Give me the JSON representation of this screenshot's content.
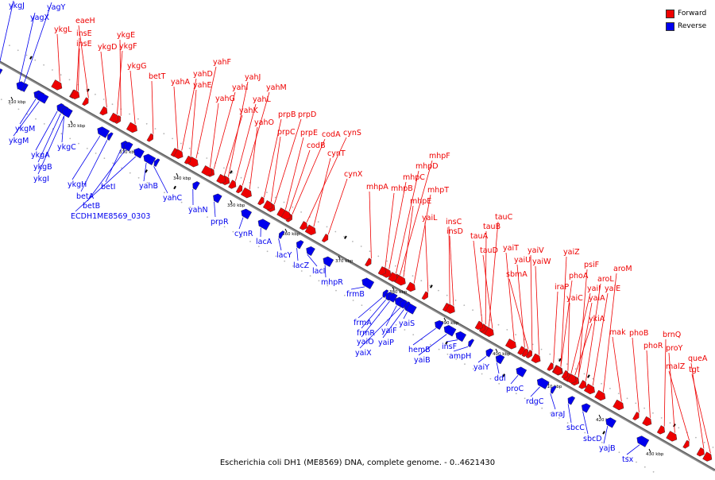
{
  "caption": "Escherichia coli DH1 (ME8569) DNA, complete genome. - 0..4621430",
  "colors": {
    "forward": "#ee0000",
    "reverse": "#0000ee",
    "axis": "#8a8a8a"
  },
  "legend": [
    {
      "label": "Forward",
      "strand": "forward"
    },
    {
      "label": "Reverse",
      "strand": "reverse"
    }
  ],
  "ticks": [
    "310 kbp",
    "320 kbp",
    "330 kbp",
    "340 kbp",
    "350 kbp",
    "360 kbp",
    "370 kbp",
    "380 kbp",
    "390 kbp",
    "400 kbp",
    "410 kbp",
    "420 kbp",
    "430 kbp"
  ],
  "forward_genes": [
    "eaeH",
    "insE",
    "insE",
    "ykgL",
    "ykgE",
    "ykgD",
    "ykgF",
    "ykgG",
    "betT",
    "yahA",
    "yahD",
    "yahF",
    "yahE",
    "yahI",
    "yahJ",
    "yahG",
    "yahM",
    "yahL",
    "yahK",
    "yahO",
    "prpB",
    "prpD",
    "prpC",
    "prpE",
    "codA",
    "cynS",
    "codB",
    "cynT",
    "cynX",
    "mhpF",
    "mhpD",
    "mhpC",
    "mhpA",
    "mhpB",
    "mhpT",
    "mhpE",
    "yaiL",
    "insC",
    "insD",
    "tauC",
    "tauB",
    "tauA",
    "tauD",
    "yaiT",
    "yaiV",
    "yaiU",
    "yaiW",
    "yaiZ",
    "sbmA",
    "psiF",
    "phoA",
    "aroM",
    "iraP",
    "aroL",
    "yaiI",
    "yaiE",
    "yaiC",
    "yaiA",
    "ykiA",
    "mak",
    "phoB",
    "brnQ",
    "phoR",
    "proY",
    "malZ",
    "queA",
    "tgt"
  ],
  "reverse_genes": [
    "ykgJ",
    "yagY",
    "yagX",
    "ykgM",
    "ykgM",
    "ykgC",
    "ykgA",
    "ykgB",
    "ykgI",
    "ykgH",
    "betA",
    "betI",
    "betB",
    "ECDH1ME8569_0303",
    "yahB",
    "yahC",
    "yahN",
    "prpR",
    "cynR",
    "lacA",
    "lacY",
    "lacZ",
    "lacI",
    "mhpR",
    "frmB",
    "frmA",
    "frmR",
    "yaiO",
    "yaiF",
    "yaiS",
    "yaiP",
    "yaiX",
    "hemB",
    "insF",
    "yaiB",
    "ampH",
    "yaiY",
    "ddl",
    "proC",
    "rdgC",
    "araJ",
    "sbcC",
    "sbcD",
    "yajB",
    "tsx"
  ]
}
